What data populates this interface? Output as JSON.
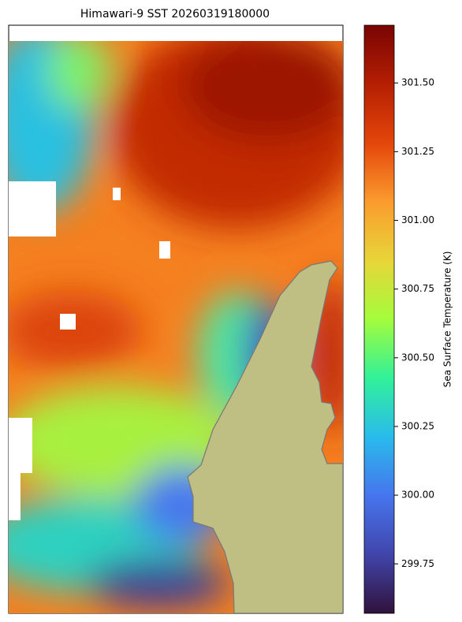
{
  "chart_data": {
    "type": "heatmap",
    "title": "Himawari-9 SST 20260319180000",
    "colorbar_label": "Sea Surface Temperature (K)",
    "clim": [
      299.57,
      301.71
    ],
    "cticks": [
      299.75,
      {
        "value": 300.0,
        "label": "300.00"
      },
      300.25,
      {
        "value": 300.5,
        "label": "300.50"
      },
      300.75,
      {
        "value": 301.0,
        "label": "301.00"
      },
      301.25,
      {
        "value": 301.5,
        "label": "301.50"
      }
    ]
  }
}
